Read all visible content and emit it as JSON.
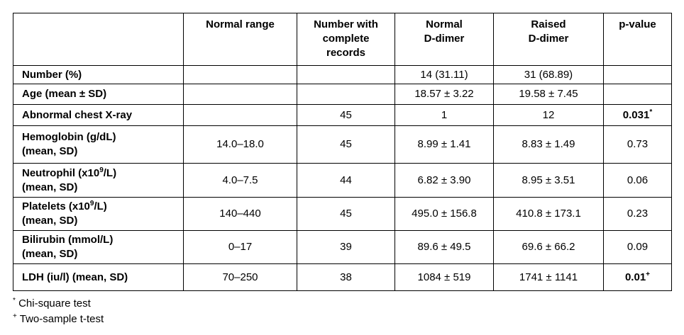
{
  "table": {
    "header": [
      [
        "Normal range"
      ],
      [
        "Number with",
        "complete",
        "records"
      ],
      [
        "Normal",
        "D-dimer"
      ],
      [
        "Raised",
        "D-dimer"
      ],
      [
        "p-value"
      ]
    ],
    "rows": [
      {
        "label": [
          "Number (%)"
        ],
        "cells": [
          null,
          null,
          "14 (31.11)",
          "31 (68.89)",
          null
        ]
      },
      {
        "label": [
          "Age (mean ± SD)"
        ],
        "cells": [
          null,
          null,
          "18.57 ± 3.22",
          "19.58 ± 7.45",
          null
        ]
      },
      {
        "label": [
          "Abnormal chest X-ray"
        ],
        "cells": [
          null,
          "45",
          "1",
          "12",
          {
            "text": "0.031",
            "sup": "*",
            "bold": true
          }
        ]
      },
      {
        "label": [
          "Hemoglobin (g/dL)",
          "(mean, SD)"
        ],
        "cells": [
          "14.0–18.0",
          "45",
          "8.99 ± 1.41",
          "8.83 ± 1.49",
          "0.73"
        ]
      },
      {
        "label": [
          {
            "text": "Neutrophil (x10",
            "sup": "9",
            "tail": "/L)"
          },
          "(mean, SD)"
        ],
        "cells": [
          "4.0–7.5",
          "44",
          "6.82 ± 3.90",
          "8.95 ± 3.51",
          "0.06"
        ]
      },
      {
        "label": [
          {
            "text": "Platelets (x10",
            "sup": "9",
            "tail": "/L)"
          },
          "(mean, SD)"
        ],
        "cells": [
          "140–440",
          "45",
          "495.0 ± 156.8",
          "410.8 ± 173.1",
          "0.23"
        ]
      },
      {
        "label": [
          "Bilirubin (mmol/L)",
          "(mean, SD)"
        ],
        "cells": [
          "0–17",
          "39",
          "89.6 ± 49.5",
          "69.6 ± 66.2",
          "0.09"
        ]
      },
      {
        "label": [
          "LDH (iu/l) (mean, SD)"
        ],
        "cells": [
          "70–250",
          "38",
          "1084 ± 519",
          "1741 ± 1141",
          {
            "text": "0.01",
            "sup": "+",
            "bold": true
          }
        ]
      }
    ],
    "footnotes": [
      {
        "sup": "*",
        "text": "Chi-square test"
      },
      {
        "sup": "+",
        "text": "Two-sample t-test"
      }
    ]
  }
}
